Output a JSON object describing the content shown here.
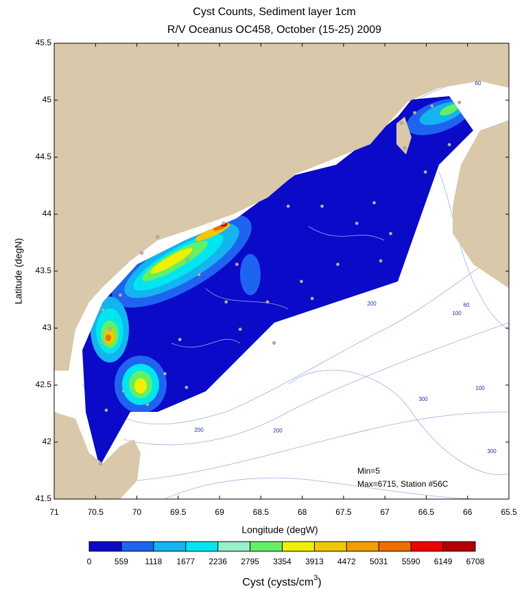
{
  "chart_data": {
    "type": "scatter",
    "title": "Cyst Counts, Sediment layer 1cm",
    "subtitle": "R/V Oceanus OC458, October (15-25) 2009",
    "x_label": "Longitude (degW)",
    "y_label": "Latitude (degN)",
    "xlim": [
      71,
      65.5
    ],
    "xticks": [
      71,
      70.5,
      70,
      69.5,
      69,
      68.5,
      68,
      67.5,
      67,
      66.5,
      66,
      65.5
    ],
    "ylim": [
      41.5,
      45.5
    ],
    "yticks": [
      41.5,
      42,
      42.5,
      43,
      43.5,
      44,
      44.5,
      45,
      45.5
    ],
    "x": [
      70.44,
      70.37,
      70.43,
      70.33,
      70.41,
      70.2,
      69.94,
      69.75,
      69.39,
      69.25,
      68.95,
      68.79,
      69.48,
      69.66,
      69.4,
      69.87,
      68.92,
      68.42,
      68.34,
      68.01,
      67.88,
      67.57,
      67.34,
      67.13,
      67.05,
      66.93,
      67.76,
      68.17,
      66.8,
      66.64,
      66.43,
      66.1,
      66.22,
      66.51,
      66.76,
      68.75,
      70.16
    ],
    "values": [
      41.81,
      42.28,
      42.87,
      42.99,
      43.16,
      43.29,
      43.66,
      43.8,
      43.6,
      43.47,
      43.92,
      43.56,
      42.9,
      42.6,
      42.48,
      42.33,
      43.23,
      43.23,
      42.87,
      43.41,
      43.26,
      43.56,
      43.92,
      44.1,
      43.59,
      43.83,
      44.07,
      44.07,
      44.8,
      44.89,
      44.95,
      44.98,
      44.61,
      44.37,
      44.58,
      42.99,
      42.45
    ],
    "color": "#b4b4b4",
    "annotations": [
      "Min=5",
      "Max=6715, Station #56C"
    ],
    "contour_labels": [
      60,
      60,
      100,
      200,
      100,
      300,
      200,
      200,
      300
    ],
    "colorbar": {
      "ticks": [
        0,
        559,
        1118,
        1677,
        2236,
        2795,
        3354,
        3913,
        4472,
        5031,
        5590,
        6149,
        6708
      ],
      "colors": [
        "#0a0ac8",
        "#1e64f0",
        "#14b4f0",
        "#00e6f0",
        "#96f0c8",
        "#64f064",
        "#f0f000",
        "#f0c800",
        "#f0a000",
        "#f06e00",
        "#f00000",
        "#b40000"
      ],
      "label": "Cyst (cysts/cm",
      "label_sup": "3",
      "label_end": ")"
    }
  }
}
